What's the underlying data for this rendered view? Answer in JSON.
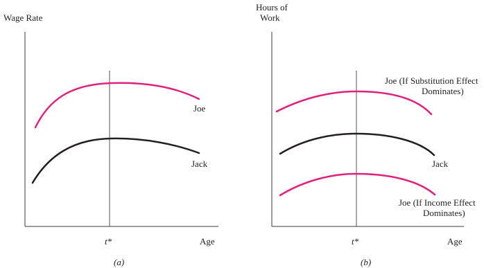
{
  "colors": {
    "pink": "#e0207a",
    "dark": "#231f20",
    "axis": "#3a3a3a"
  },
  "chart_data": [
    {
      "type": "line",
      "panel_label": "(a)",
      "ylabel": "Wage Rate",
      "xlabel": "Age",
      "marker_label": "t*",
      "grid": false,
      "series": [
        {
          "name": "Joe",
          "color": "#e0207a",
          "x": [
            0.06,
            0.1,
            0.2,
            0.35,
            0.5,
            0.7,
            0.9,
            1.0
          ],
          "y": [
            0.46,
            0.56,
            0.69,
            0.76,
            0.78,
            0.77,
            0.73,
            0.7
          ]
        },
        {
          "name": "Jack",
          "color": "#231f20",
          "x": [
            0.05,
            0.1,
            0.2,
            0.35,
            0.55,
            0.75,
            0.9,
            1.0
          ],
          "y": [
            0.22,
            0.3,
            0.4,
            0.47,
            0.5,
            0.49,
            0.47,
            0.45
          ]
        }
      ],
      "annotations": [
        {
          "text": "Joe",
          "x": 0.95,
          "y": 0.62
        },
        {
          "text": "Jack",
          "x": 0.97,
          "y": 0.32
        }
      ]
    },
    {
      "type": "line",
      "panel_label": "(b)",
      "ylabel": [
        "Hours of",
        "Work"
      ],
      "xlabel": "Age",
      "marker_label": "t*",
      "grid": false,
      "series": [
        {
          "name": "Joe (If Substitution Effect Dominates)",
          "color": "#e0207a",
          "x": [
            0.0,
            0.2,
            0.45,
            0.8,
            0.95
          ],
          "y": [
            0.7,
            0.76,
            0.8,
            0.78,
            0.68
          ]
        },
        {
          "name": "Jack",
          "color": "#231f20",
          "x": [
            0.02,
            0.2,
            0.45,
            0.8,
            0.96
          ],
          "y": [
            0.44,
            0.51,
            0.54,
            0.52,
            0.43
          ]
        },
        {
          "name": "Joe (If Income Effect Dominates)",
          "color": "#e0207a",
          "x": [
            0.02,
            0.2,
            0.45,
            0.8,
            0.96
          ],
          "y": [
            0.18,
            0.26,
            0.3,
            0.28,
            0.18
          ]
        }
      ],
      "annotations": [
        {
          "text": [
            "Joe (If Substitution Effect",
            "Dominates)"
          ],
          "x": 0.8,
          "y": 0.88
        },
        {
          "text": "Jack",
          "x": 0.97,
          "y": 0.36
        },
        {
          "text": [
            "Joe (If Income Effect",
            "Dominates)"
          ],
          "x": 0.8,
          "y": 0.08
        }
      ]
    }
  ]
}
